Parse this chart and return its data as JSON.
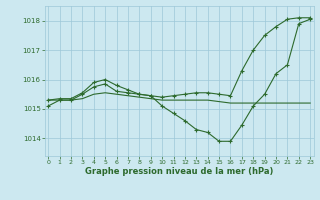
{
  "xlabel": "Graphe pression niveau de la mer (hPa)",
  "ylim": [
    1013.4,
    1018.5
  ],
  "xlim": [
    -0.3,
    23.3
  ],
  "yticks": [
    1014,
    1015,
    1016,
    1017,
    1018
  ],
  "xticks": [
    0,
    1,
    2,
    3,
    4,
    5,
    6,
    7,
    8,
    9,
    10,
    11,
    12,
    13,
    14,
    15,
    16,
    17,
    18,
    19,
    20,
    21,
    22,
    23
  ],
  "bg_color": "#cce8f0",
  "line_color": "#2d6a2d",
  "grid_color": "#9ec8d8",
  "series1_markers": [
    1015.1,
    1015.3,
    1015.3,
    1015.5,
    1015.75,
    1015.85,
    1015.6,
    1015.55,
    1015.5,
    1015.45,
    1015.1,
    1014.85,
    1014.6,
    1014.3,
    1014.2,
    1013.9,
    1013.9,
    1014.45,
    1015.1,
    1015.5,
    1016.2,
    1016.5,
    1017.9,
    1018.05
  ],
  "series2_flat": [
    1015.3,
    1015.3,
    1015.3,
    1015.35,
    1015.5,
    1015.55,
    1015.5,
    1015.45,
    1015.4,
    1015.35,
    1015.3,
    1015.3,
    1015.3,
    1015.3,
    1015.3,
    1015.25,
    1015.2,
    1015.2,
    1015.2,
    1015.2,
    1015.2,
    1015.2,
    1015.2,
    1015.2
  ],
  "series3_upper": [
    1015.3,
    1015.35,
    1015.35,
    1015.55,
    1015.9,
    1016.0,
    1015.8,
    1015.65,
    1015.5,
    1015.45,
    1015.4,
    1015.45,
    1015.5,
    1015.55,
    1015.55,
    1015.5,
    1015.45,
    1016.3,
    1017.0,
    1017.5,
    1017.8,
    1018.05,
    1018.1,
    1018.1
  ]
}
